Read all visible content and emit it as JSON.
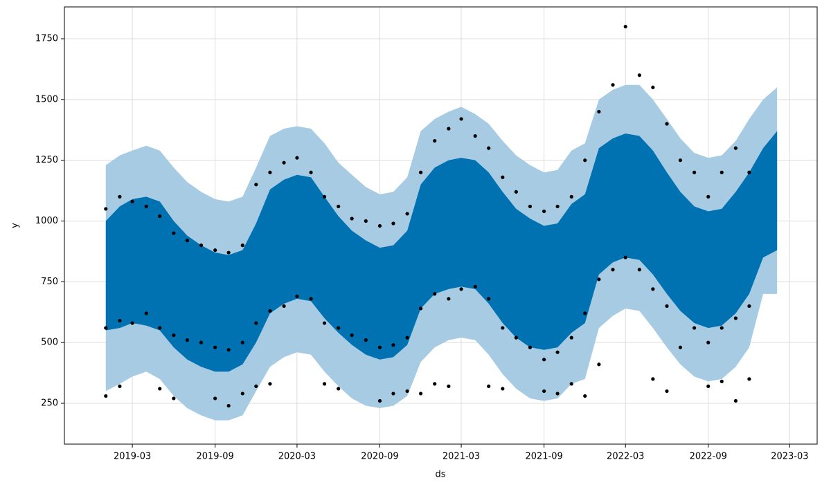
{
  "chart_data": {
    "type": "forecast",
    "xlabel": "ds",
    "ylabel": "y",
    "xlim": [
      "2018-10",
      "2023-05"
    ],
    "ylim": [
      82,
      1881
    ],
    "xticks": [
      "2019-03",
      "2019-09",
      "2020-03",
      "2020-09",
      "2021-03",
      "2021-09",
      "2022-03",
      "2022-09",
      "2023-03"
    ],
    "yticks": [
      250,
      500,
      750,
      1000,
      1250,
      1500,
      1750
    ],
    "grid": true,
    "series": [
      {
        "type": "band",
        "color": "#a6cbe3",
        "x": [
          "2019-01",
          "2019-02",
          "2019-03",
          "2019-04",
          "2019-05",
          "2019-06",
          "2019-07",
          "2019-08",
          "2019-09",
          "2019-10",
          "2019-11",
          "2019-12",
          "2020-01",
          "2020-02",
          "2020-03",
          "2020-04",
          "2020-05",
          "2020-06",
          "2020-07",
          "2020-08",
          "2020-09",
          "2020-10",
          "2020-11",
          "2020-12",
          "2021-01",
          "2021-02",
          "2021-03",
          "2021-04",
          "2021-05",
          "2021-06",
          "2021-07",
          "2021-08",
          "2021-09",
          "2021-10",
          "2021-11",
          "2021-12",
          "2022-01",
          "2022-02",
          "2022-03",
          "2022-04",
          "2022-05",
          "2022-06",
          "2022-07",
          "2022-08",
          "2022-09",
          "2022-10",
          "2022-11",
          "2022-12",
          "2023-01",
          "2023-02"
        ],
        "upper": [
          1230,
          1270,
          1290,
          1310,
          1290,
          1220,
          1160,
          1120,
          1090,
          1080,
          1100,
          1220,
          1350,
          1380,
          1390,
          1380,
          1320,
          1240,
          1190,
          1140,
          1110,
          1120,
          1180,
          1370,
          1420,
          1450,
          1470,
          1440,
          1400,
          1330,
          1270,
          1230,
          1200,
          1210,
          1290,
          1320,
          1500,
          1540,
          1560,
          1560,
          1500,
          1420,
          1340,
          1280,
          1260,
          1270,
          1330,
          1420,
          1500,
          1550
        ],
        "lower": [
          300,
          330,
          360,
          380,
          350,
          280,
          230,
          200,
          180,
          180,
          200,
          300,
          400,
          440,
          460,
          450,
          380,
          320,
          270,
          240,
          230,
          240,
          280,
          420,
          480,
          510,
          520,
          510,
          450,
          370,
          310,
          270,
          260,
          270,
          330,
          350,
          560,
          610,
          640,
          630,
          560,
          480,
          410,
          360,
          340,
          350,
          400,
          480,
          700,
          700
        ]
      },
      {
        "type": "band",
        "color": "#0072b2",
        "x": [
          "2019-01",
          "2019-02",
          "2019-03",
          "2019-04",
          "2019-05",
          "2019-06",
          "2019-07",
          "2019-08",
          "2019-09",
          "2019-10",
          "2019-11",
          "2019-12",
          "2020-01",
          "2020-02",
          "2020-03",
          "2020-04",
          "2020-05",
          "2020-06",
          "2020-07",
          "2020-08",
          "2020-09",
          "2020-10",
          "2020-11",
          "2020-12",
          "2021-01",
          "2021-02",
          "2021-03",
          "2021-04",
          "2021-05",
          "2021-06",
          "2021-07",
          "2021-08",
          "2021-09",
          "2021-10",
          "2021-11",
          "2021-12",
          "2022-01",
          "2022-02",
          "2022-03",
          "2022-04",
          "2022-05",
          "2022-06",
          "2022-07",
          "2022-08",
          "2022-09",
          "2022-10",
          "2022-11",
          "2022-12",
          "2023-01",
          "2023-02"
        ],
        "upper": [
          1000,
          1060,
          1090,
          1100,
          1080,
          1000,
          940,
          900,
          870,
          860,
          880,
          990,
          1130,
          1170,
          1190,
          1180,
          1100,
          1020,
          960,
          920,
          890,
          900,
          960,
          1150,
          1220,
          1250,
          1260,
          1250,
          1200,
          1120,
          1050,
          1010,
          980,
          990,
          1070,
          1110,
          1300,
          1340,
          1360,
          1350,
          1290,
          1200,
          1120,
          1060,
          1040,
          1050,
          1120,
          1200,
          1300,
          1370
        ],
        "lower": [
          550,
          560,
          580,
          570,
          550,
          480,
          430,
          400,
          380,
          380,
          410,
          500,
          620,
          660,
          680,
          670,
          600,
          540,
          490,
          450,
          430,
          440,
          490,
          640,
          700,
          720,
          730,
          720,
          660,
          580,
          520,
          480,
          470,
          480,
          540,
          580,
          780,
          830,
          850,
          840,
          780,
          700,
          630,
          580,
          560,
          570,
          620,
          700,
          850,
          880
        ]
      },
      {
        "type": "scatter",
        "color": "#000000",
        "x": [
          "2019-01",
          "2019-01",
          "2019-01",
          "2019-02",
          "2019-02",
          "2019-02",
          "2019-03",
          "2019-03",
          "2019-04",
          "2019-04",
          "2019-05",
          "2019-05",
          "2019-05",
          "2019-06",
          "2019-06",
          "2019-06",
          "2019-07",
          "2019-07",
          "2019-08",
          "2019-08",
          "2019-09",
          "2019-09",
          "2019-09",
          "2019-10",
          "2019-10",
          "2019-10",
          "2019-11",
          "2019-11",
          "2019-11",
          "2019-12",
          "2019-12",
          "2019-12",
          "2020-01",
          "2020-01",
          "2020-01",
          "2020-02",
          "2020-02",
          "2020-03",
          "2020-03",
          "2020-04",
          "2020-04",
          "2020-05",
          "2020-05",
          "2020-05",
          "2020-06",
          "2020-06",
          "2020-06",
          "2020-07",
          "2020-07",
          "2020-08",
          "2020-08",
          "2020-09",
          "2020-09",
          "2020-09",
          "2020-10",
          "2020-10",
          "2020-10",
          "2020-11",
          "2020-11",
          "2020-11",
          "2020-12",
          "2020-12",
          "2020-12",
          "2021-01",
          "2021-01",
          "2021-01",
          "2021-02",
          "2021-02",
          "2021-02",
          "2021-03",
          "2021-03",
          "2021-04",
          "2021-04",
          "2021-05",
          "2021-05",
          "2021-05",
          "2021-06",
          "2021-06",
          "2021-06",
          "2021-07",
          "2021-07",
          "2021-08",
          "2021-08",
          "2021-09",
          "2021-09",
          "2021-09",
          "2021-10",
          "2021-10",
          "2021-10",
          "2021-11",
          "2021-11",
          "2021-11",
          "2021-12",
          "2021-12",
          "2021-12",
          "2022-01",
          "2022-01",
          "2022-01",
          "2022-02",
          "2022-02",
          "2022-03",
          "2022-03",
          "2022-04",
          "2022-04",
          "2022-05",
          "2022-05",
          "2022-05",
          "2022-06",
          "2022-06",
          "2022-06",
          "2022-07",
          "2022-07",
          "2022-08",
          "2022-08",
          "2022-09",
          "2022-09",
          "2022-09",
          "2022-10",
          "2022-10",
          "2022-10",
          "2022-11",
          "2022-11",
          "2022-11",
          "2022-12",
          "2022-12",
          "2022-12"
        ],
        "values": [
          1050,
          560,
          280,
          1100,
          590,
          320,
          1080,
          580,
          1060,
          620,
          1020,
          560,
          310,
          950,
          530,
          270,
          920,
          510,
          900,
          500,
          880,
          480,
          270,
          870,
          470,
          240,
          900,
          500,
          290,
          1150,
          580,
          320,
          1200,
          630,
          330,
          1240,
          650,
          1260,
          690,
          1200,
          680,
          1100,
          580,
          330,
          1060,
          560,
          310,
          1010,
          530,
          1000,
          510,
          980,
          480,
          260,
          990,
          490,
          290,
          1030,
          520,
          300,
          1200,
          640,
          290,
          1330,
          700,
          330,
          1380,
          680,
          320,
          1420,
          720,
          1350,
          730,
          1300,
          680,
          320,
          1180,
          560,
          310,
          1120,
          520,
          1060,
          480,
          1040,
          430,
          300,
          1060,
          460,
          290,
          1100,
          520,
          330,
          1250,
          620,
          280,
          1450,
          760,
          410,
          1560,
          800,
          1800,
          850,
          1600,
          800,
          1550,
          720,
          350,
          1400,
          650,
          300,
          1250,
          480,
          1200,
          560,
          1100,
          500,
          320,
          1200,
          560,
          340,
          1300,
          600,
          260,
          1200,
          650,
          350
        ]
      }
    ]
  }
}
